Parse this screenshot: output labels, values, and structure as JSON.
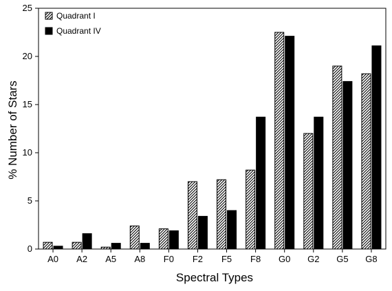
{
  "chart_data": {
    "type": "bar",
    "title": "",
    "xlabel": "Spectral Types",
    "ylabel": "% Number of Stars",
    "ylim": [
      0,
      25
    ],
    "yticks": [
      0,
      5,
      10,
      15,
      20,
      25
    ],
    "grid": false,
    "legend_position": "top-left",
    "categories": [
      "A0",
      "A2",
      "A5",
      "A8",
      "F0",
      "F2",
      "F5",
      "F8",
      "G0",
      "G2",
      "G5",
      "G8"
    ],
    "series": [
      {
        "name": "Quadrant I",
        "fill": "hatched",
        "values": [
          0.7,
          0.7,
          0.2,
          2.4,
          2.1,
          7.0,
          7.2,
          8.2,
          22.5,
          12.0,
          19.0,
          18.2
        ]
      },
      {
        "name": "Quadrant IV",
        "fill": "solid",
        "color": "#000000",
        "values": [
          0.3,
          1.6,
          0.6,
          0.6,
          1.9,
          3.4,
          4.0,
          13.7,
          22.1,
          13.7,
          17.4,
          21.1
        ]
      }
    ]
  }
}
